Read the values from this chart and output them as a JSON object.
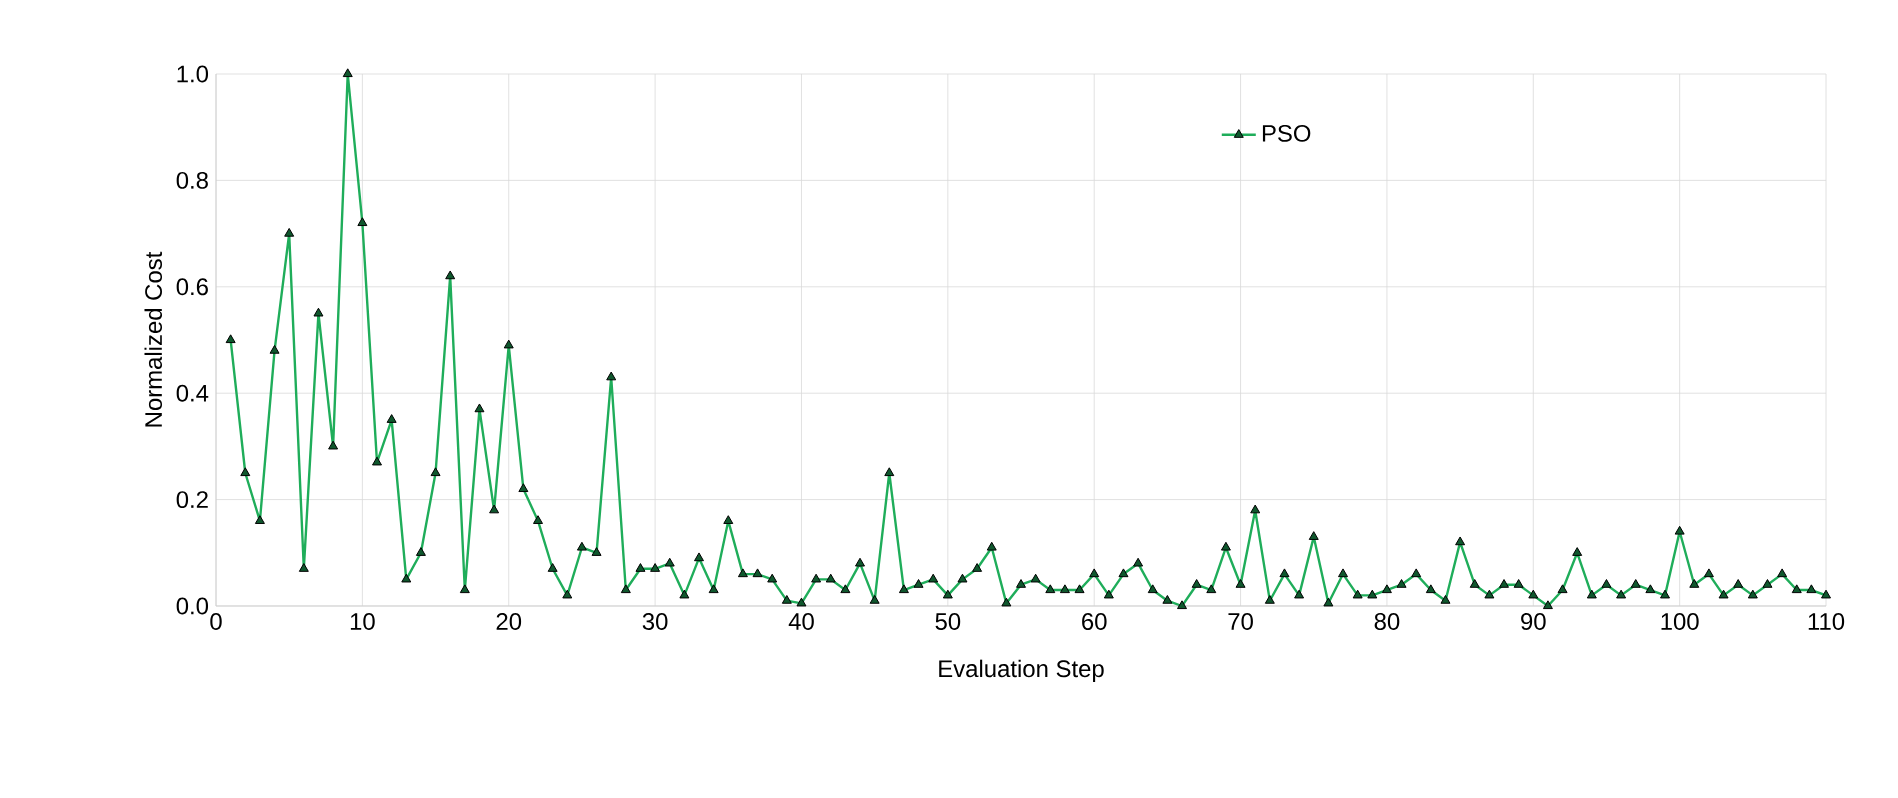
{
  "chart_data": {
    "type": "line",
    "xlabel": "Evaluation Step",
    "ylabel": "Normalized Cost",
    "x": [
      1,
      2,
      3,
      4,
      5,
      6,
      7,
      8,
      9,
      10,
      11,
      12,
      13,
      14,
      15,
      16,
      17,
      18,
      19,
      20,
      21,
      22,
      23,
      24,
      25,
      26,
      27,
      28,
      29,
      30,
      31,
      32,
      33,
      34,
      35,
      36,
      37,
      38,
      39,
      40,
      41,
      42,
      43,
      44,
      45,
      46,
      47,
      48,
      49,
      50,
      51,
      52,
      53,
      54,
      55,
      56,
      57,
      58,
      59,
      60,
      61,
      62,
      63,
      64,
      65,
      66,
      67,
      68,
      69,
      70,
      71,
      72,
      73,
      74,
      75,
      76,
      77,
      78,
      79,
      80,
      81,
      82,
      83,
      84,
      85,
      86,
      87,
      88,
      89,
      90,
      91,
      92,
      93,
      94,
      95,
      96,
      97,
      98,
      99,
      100,
      101,
      102,
      103,
      104,
      105,
      106,
      107,
      108,
      109,
      110
    ],
    "series": [
      {
        "name": "PSO",
        "color": "#1fad5a",
        "values": [
          0.5,
          0.25,
          0.16,
          0.48,
          0.7,
          0.07,
          0.55,
          0.3,
          1.0,
          0.72,
          0.27,
          0.35,
          0.05,
          0.1,
          0.25,
          0.62,
          0.03,
          0.37,
          0.18,
          0.49,
          0.22,
          0.16,
          0.07,
          0.02,
          0.11,
          0.1,
          0.43,
          0.03,
          0.07,
          0.07,
          0.08,
          0.02,
          0.09,
          0.03,
          0.16,
          0.06,
          0.06,
          0.05,
          0.01,
          0.005,
          0.05,
          0.05,
          0.03,
          0.08,
          0.01,
          0.25,
          0.03,
          0.04,
          0.05,
          0.02,
          0.05,
          0.07,
          0.11,
          0.005,
          0.04,
          0.05,
          0.03,
          0.03,
          0.03,
          0.06,
          0.02,
          0.06,
          0.08,
          0.03,
          0.01,
          0.0,
          0.04,
          0.03,
          0.11,
          0.04,
          0.18,
          0.01,
          0.06,
          0.02,
          0.13,
          0.005,
          0.06,
          0.02,
          0.02,
          0.03,
          0.04,
          0.06,
          0.03,
          0.01,
          0.12,
          0.04,
          0.02,
          0.04,
          0.04,
          0.02,
          0.0,
          0.03,
          0.1,
          0.02,
          0.04,
          0.02,
          0.04,
          0.03,
          0.02,
          0.14,
          0.04,
          0.06,
          0.02,
          0.04,
          0.02,
          0.04,
          0.06,
          0.03,
          0.03,
          0.02
        ]
      }
    ],
    "xlim": [
      0,
      110
    ],
    "ylim": [
      0,
      1.0
    ],
    "xticks": [
      0,
      10,
      20,
      30,
      40,
      50,
      60,
      70,
      80,
      90,
      100,
      110
    ],
    "yticks": [
      {
        "value": 0,
        "label": "0.0"
      },
      {
        "value": 0.2,
        "label": "0.2"
      },
      {
        "value": 0.4,
        "label": "0.4"
      },
      {
        "value": 0.6,
        "label": "0.6"
      },
      {
        "value": 0.8,
        "label": "0.8"
      },
      {
        "value": 1.0,
        "label": "1.0"
      }
    ],
    "grid": true,
    "legend": "top right",
    "marker": "triangle",
    "line_style": "solid"
  }
}
